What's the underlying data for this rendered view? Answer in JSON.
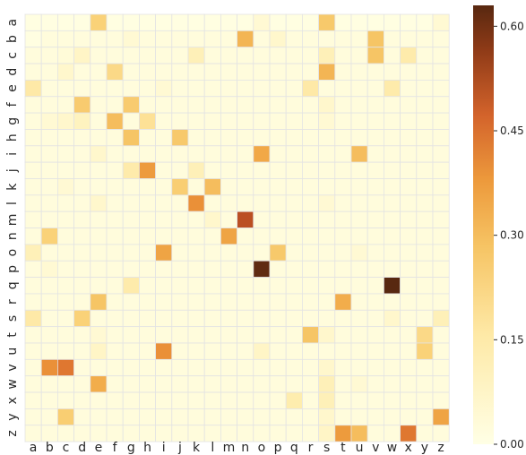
{
  "chart_data": {
    "type": "heatmap",
    "title": "",
    "xlabel": "",
    "ylabel": "",
    "x_labels": [
      "a",
      "b",
      "c",
      "d",
      "e",
      "f",
      "g",
      "h",
      "i",
      "j",
      "k",
      "l",
      "m",
      "n",
      "o",
      "p",
      "q",
      "r",
      "s",
      "t",
      "u",
      "v",
      "w",
      "x",
      "y",
      "z"
    ],
    "y_labels": [
      "a",
      "b",
      "c",
      "d",
      "e",
      "f",
      "g",
      "h",
      "i",
      "j",
      "k",
      "l",
      "m",
      "n",
      "o",
      "p",
      "q",
      "r",
      "s",
      "t",
      "u",
      "v",
      "w",
      "x",
      "y",
      "z"
    ],
    "value_range": [
      0.0,
      0.63
    ],
    "colormap": "YlOrBr",
    "colorbar": {
      "ticks": [
        0.0,
        0.15,
        0.3,
        0.45,
        0.6
      ],
      "tick_labels": [
        "0.00",
        "0.15",
        "0.30",
        "0.45",
        "0.60"
      ]
    },
    "grid_lines": true,
    "values": [
      [
        0.01,
        0.01,
        0.01,
        0.01,
        0.22,
        0.01,
        0.01,
        0.01,
        0.01,
        0.01,
        0.01,
        0.01,
        0.01,
        0.01,
        0.04,
        0.01,
        0.01,
        0.01,
        0.26,
        0.01,
        0.01,
        0.01,
        0.01,
        0.01,
        0.01,
        0.04
      ],
      [
        0.01,
        0.02,
        0.02,
        0.02,
        0.02,
        0.02,
        0.04,
        0.02,
        0.02,
        0.02,
        0.02,
        0.02,
        0.02,
        0.32,
        0.02,
        0.05,
        0.02,
        0.02,
        0.02,
        0.02,
        0.02,
        0.28,
        0.02,
        0.02,
        0.02,
        0.02
      ],
      [
        0.02,
        0.02,
        0.03,
        0.06,
        0.02,
        0.02,
        0.02,
        0.02,
        0.02,
        0.02,
        0.08,
        0.02,
        0.02,
        0.02,
        0.02,
        0.02,
        0.02,
        0.02,
        0.08,
        0.02,
        0.02,
        0.28,
        0.02,
        0.12,
        0.02,
        0.02
      ],
      [
        0.02,
        0.02,
        0.05,
        0.02,
        0.02,
        0.2,
        0.02,
        0.02,
        0.02,
        0.02,
        0.02,
        0.02,
        0.02,
        0.02,
        0.02,
        0.02,
        0.02,
        0.02,
        0.32,
        0.02,
        0.02,
        0.02,
        0.02,
        0.02,
        0.02,
        0.02
      ],
      [
        0.15,
        0.02,
        0.02,
        0.02,
        0.02,
        0.02,
        0.02,
        0.02,
        0.04,
        0.02,
        0.02,
        0.02,
        0.02,
        0.02,
        0.02,
        0.02,
        0.02,
        0.15,
        0.02,
        0.02,
        0.02,
        0.02,
        0.12,
        0.02,
        0.02,
        0.02
      ],
      [
        0.02,
        0.02,
        0.02,
        0.25,
        0.02,
        0.02,
        0.25,
        0.02,
        0.02,
        0.02,
        0.02,
        0.02,
        0.02,
        0.02,
        0.02,
        0.02,
        0.02,
        0.02,
        0.05,
        0.02,
        0.02,
        0.02,
        0.02,
        0.02,
        0.02,
        0.02
      ],
      [
        0.02,
        0.04,
        0.05,
        0.07,
        0.02,
        0.3,
        0.02,
        0.18,
        0.02,
        0.02,
        0.02,
        0.02,
        0.02,
        0.02,
        0.02,
        0.02,
        0.02,
        0.02,
        0.04,
        0.02,
        0.02,
        0.02,
        0.02,
        0.02,
        0.02,
        0.02
      ],
      [
        0.02,
        0.02,
        0.02,
        0.02,
        0.02,
        0.02,
        0.28,
        0.02,
        0.02,
        0.26,
        0.02,
        0.02,
        0.02,
        0.02,
        0.02,
        0.02,
        0.02,
        0.02,
        0.02,
        0.02,
        0.02,
        0.02,
        0.02,
        0.02,
        0.02,
        0.02
      ],
      [
        0.02,
        0.02,
        0.02,
        0.02,
        0.05,
        0.02,
        0.02,
        0.02,
        0.02,
        0.02,
        0.02,
        0.02,
        0.02,
        0.02,
        0.35,
        0.02,
        0.02,
        0.02,
        0.02,
        0.02,
        0.3,
        0.02,
        0.02,
        0.02,
        0.02,
        0.02
      ],
      [
        0.02,
        0.02,
        0.02,
        0.02,
        0.02,
        0.02,
        0.12,
        0.38,
        0.02,
        0.02,
        0.08,
        0.02,
        0.02,
        0.02,
        0.02,
        0.02,
        0.02,
        0.02,
        0.02,
        0.02,
        0.02,
        0.02,
        0.02,
        0.02,
        0.02,
        0.02
      ],
      [
        0.02,
        0.02,
        0.04,
        0.02,
        0.02,
        0.02,
        0.02,
        0.02,
        0.02,
        0.24,
        0.02,
        0.3,
        0.02,
        0.02,
        0.02,
        0.02,
        0.02,
        0.02,
        0.02,
        0.02,
        0.02,
        0.02,
        0.02,
        0.02,
        0.02,
        0.02
      ],
      [
        0.02,
        0.02,
        0.02,
        0.02,
        0.05,
        0.02,
        0.02,
        0.02,
        0.02,
        0.02,
        0.4,
        0.02,
        0.02,
        0.02,
        0.02,
        0.02,
        0.02,
        0.02,
        0.04,
        0.02,
        0.02,
        0.02,
        0.02,
        0.02,
        0.02,
        0.02
      ],
      [
        0.02,
        0.02,
        0.02,
        0.02,
        0.02,
        0.02,
        0.02,
        0.02,
        0.02,
        0.02,
        0.02,
        0.05,
        0.02,
        0.52,
        0.02,
        0.02,
        0.02,
        0.02,
        0.02,
        0.02,
        0.02,
        0.02,
        0.02,
        0.02,
        0.02,
        0.02
      ],
      [
        0.02,
        0.22,
        0.02,
        0.02,
        0.02,
        0.02,
        0.02,
        0.02,
        0.02,
        0.02,
        0.02,
        0.02,
        0.36,
        0.02,
        0.02,
        0.02,
        0.02,
        0.02,
        0.02,
        0.02,
        0.02,
        0.02,
        0.02,
        0.02,
        0.02,
        0.02
      ],
      [
        0.08,
        0.02,
        0.02,
        0.02,
        0.02,
        0.02,
        0.02,
        0.02,
        0.36,
        0.02,
        0.02,
        0.02,
        0.02,
        0.02,
        0.02,
        0.26,
        0.02,
        0.02,
        0.02,
        0.02,
        0.04,
        0.02,
        0.02,
        0.02,
        0.02,
        0.02
      ],
      [
        0.02,
        0.04,
        0.02,
        0.02,
        0.02,
        0.02,
        0.02,
        0.02,
        0.02,
        0.02,
        0.02,
        0.02,
        0.02,
        0.02,
        0.62,
        0.02,
        0.02,
        0.02,
        0.02,
        0.02,
        0.02,
        0.02,
        0.02,
        0.02,
        0.02,
        0.02
      ],
      [
        0.02,
        0.02,
        0.02,
        0.02,
        0.02,
        0.02,
        0.12,
        0.02,
        0.02,
        0.02,
        0.02,
        0.02,
        0.02,
        0.02,
        0.02,
        0.02,
        0.02,
        0.02,
        0.02,
        0.02,
        0.02,
        0.02,
        0.63,
        0.02,
        0.02,
        0.02
      ],
      [
        0.02,
        0.02,
        0.02,
        0.02,
        0.28,
        0.02,
        0.02,
        0.02,
        0.02,
        0.02,
        0.02,
        0.02,
        0.02,
        0.02,
        0.02,
        0.02,
        0.02,
        0.02,
        0.02,
        0.34,
        0.02,
        0.02,
        0.02,
        0.02,
        0.02,
        0.02
      ],
      [
        0.15,
        0.02,
        0.02,
        0.22,
        0.02,
        0.02,
        0.02,
        0.02,
        0.02,
        0.02,
        0.02,
        0.02,
        0.02,
        0.02,
        0.02,
        0.02,
        0.02,
        0.02,
        0.02,
        0.02,
        0.02,
        0.02,
        0.05,
        0.02,
        0.02,
        0.08
      ],
      [
        0.02,
        0.02,
        0.02,
        0.02,
        0.04,
        0.02,
        0.02,
        0.02,
        0.02,
        0.02,
        0.02,
        0.02,
        0.02,
        0.02,
        0.02,
        0.02,
        0.02,
        0.28,
        0.05,
        0.02,
        0.02,
        0.02,
        0.02,
        0.02,
        0.2,
        0.02
      ],
      [
        0.02,
        0.02,
        0.02,
        0.02,
        0.06,
        0.02,
        0.02,
        0.02,
        0.4,
        0.02,
        0.02,
        0.02,
        0.02,
        0.02,
        0.06,
        0.02,
        0.02,
        0.02,
        0.02,
        0.02,
        0.02,
        0.02,
        0.02,
        0.02,
        0.22,
        0.02
      ],
      [
        0.02,
        0.4,
        0.44,
        0.02,
        0.02,
        0.02,
        0.02,
        0.02,
        0.02,
        0.02,
        0.02,
        0.02,
        0.02,
        0.02,
        0.02,
        0.02,
        0.02,
        0.02,
        0.05,
        0.02,
        0.02,
        0.02,
        0.02,
        0.02,
        0.02,
        0.02
      ],
      [
        0.02,
        0.02,
        0.02,
        0.02,
        0.34,
        0.02,
        0.02,
        0.02,
        0.02,
        0.02,
        0.02,
        0.02,
        0.02,
        0.02,
        0.02,
        0.02,
        0.02,
        0.02,
        0.08,
        0.02,
        0.04,
        0.02,
        0.02,
        0.02,
        0.02,
        0.02
      ],
      [
        0.02,
        0.02,
        0.02,
        0.02,
        0.02,
        0.02,
        0.02,
        0.02,
        0.02,
        0.02,
        0.02,
        0.02,
        0.02,
        0.02,
        0.02,
        0.02,
        0.1,
        0.02,
        0.08,
        0.02,
        0.02,
        0.02,
        0.02,
        0.02,
        0.02,
        0.02
      ],
      [
        0.02,
        0.02,
        0.24,
        0.02,
        0.02,
        0.02,
        0.02,
        0.02,
        0.02,
        0.02,
        0.02,
        0.02,
        0.02,
        0.02,
        0.02,
        0.02,
        0.02,
        0.02,
        0.05,
        0.02,
        0.02,
        0.02,
        0.02,
        0.02,
        0.02,
        0.36
      ],
      [
        0.02,
        0.02,
        0.02,
        0.02,
        0.02,
        0.02,
        0.02,
        0.02,
        0.02,
        0.02,
        0.02,
        0.02,
        0.02,
        0.02,
        0.02,
        0.02,
        0.02,
        0.02,
        0.06,
        0.38,
        0.3,
        0.02,
        0.02,
        0.44,
        0.02,
        0.02
      ]
    ]
  }
}
